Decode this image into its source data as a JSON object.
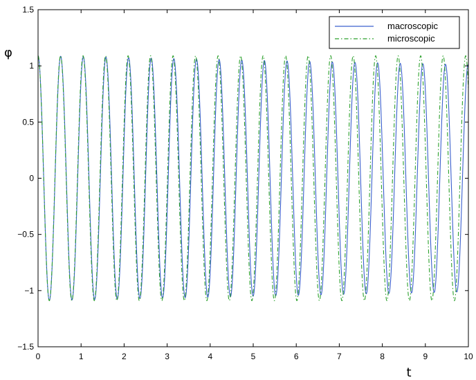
{
  "chart_data": {
    "type": "line",
    "title": "",
    "xlabel": "t",
    "ylabel": "φ",
    "xlim": [
      0,
      10
    ],
    "ylim": [
      -1.5,
      1.5
    ],
    "xticks": [
      "0",
      "1",
      "2",
      "3",
      "4",
      "5",
      "6",
      "7",
      "8",
      "9",
      "10"
    ],
    "yticks": [
      "−1.5",
      "−1",
      "−0.5",
      "0",
      "0.5",
      "1",
      "1.5"
    ],
    "grid": false,
    "legend_position": "top-right",
    "x": [
      0,
      0.5,
      1,
      1.5,
      2,
      2.5,
      3,
      3.5,
      4,
      4.5,
      5,
      5.5,
      6,
      6.5,
      7,
      7.5,
      8,
      8.5,
      9,
      9.5,
      10
    ],
    "series": [
      {
        "name": "macroscopic",
        "style": "solid",
        "color": "#3a5fcd",
        "amplitude_start": 1.09,
        "amplitude_end": 1.01,
        "period": 0.526,
        "values": [
          1.09,
          0.87,
          0.99,
          0.34,
          0.59,
          -0.21,
          0.05,
          -0.72,
          -0.51,
          -1.04,
          -0.93,
          -1.02,
          -1.08,
          -0.68,
          -0.96,
          -0.11,
          -0.54,
          0.47,
          0.03,
          0.89,
          0.71
        ]
      },
      {
        "name": "microscopic",
        "style": "dash-dot",
        "color": "#2ca02c",
        "amplitude_start": 1.09,
        "amplitude_end": 1.09,
        "period": 0.523,
        "values": [
          1.09,
          0.9,
          1.01,
          0.41,
          0.7,
          -0.12,
          0.23,
          -0.6,
          -0.29,
          -0.95,
          -0.73,
          -1.08,
          -1.02,
          -0.95,
          -1.04,
          -0.62,
          -0.82,
          -0.14,
          -0.37,
          0.38,
          0.19
        ]
      }
    ]
  }
}
